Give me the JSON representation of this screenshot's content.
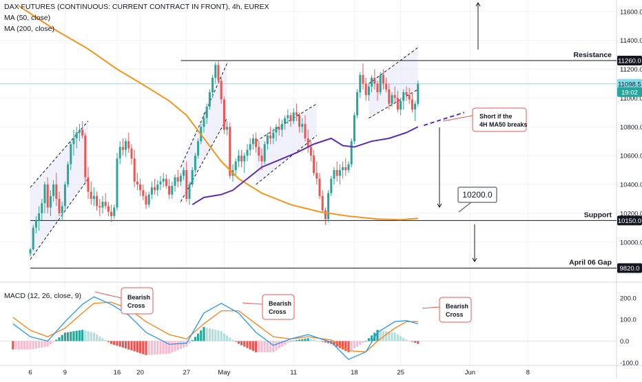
{
  "header": {
    "title": "DAX FUTURES (CONTINUOUS: CURRENT CONTRACT IN FRONT), 4h, EUREX",
    "indicators": [
      "MA (50, close)",
      "MA (200, close)"
    ]
  },
  "colors": {
    "bull": "#26a69a",
    "bear": "#ef5350",
    "ma50": "#5b2bb5",
    "ma200": "#f7931a",
    "channel": "#e6e6fa",
    "macd_line": "#2196f3",
    "signal_line": "#ff7f0e",
    "hist_up": "#26a69a",
    "hist_up_light": "#b2dfdb",
    "hist_down": "#ef5350",
    "hist_down_light": "#f8bbd0",
    "note_border": "#ef5350",
    "cyan_line": "#80deea"
  },
  "chart_data": [
    {
      "type": "candlestick",
      "title": "DAX FUTURES (CONTINUOUS: CURRENT CONTRACT IN FRONT), 4h, EUREX",
      "y_axis": {
        "ticks": [
          10000,
          10200,
          10400,
          10600,
          10800,
          11000,
          11200,
          11400,
          11600
        ],
        "range": [
          9760,
          11680
        ]
      },
      "x_axis": {
        "ticks": [
          "6",
          "9",
          "16",
          "20",
          "27",
          "May",
          "11",
          "18",
          "25",
          "Jun",
          "8"
        ],
        "tick_index": [
          0,
          12,
          30,
          38,
          54,
          67,
          91,
          112,
          128,
          152,
          172
        ]
      },
      "candles": [
        [
          9920,
          9960,
          9900,
          9950
        ],
        [
          9950,
          10120,
          9940,
          10100
        ],
        [
          10100,
          10180,
          10060,
          10150
        ],
        [
          10150,
          10250,
          10080,
          10200
        ],
        [
          10200,
          10300,
          10150,
          10270
        ],
        [
          10270,
          10420,
          10200,
          10400
        ],
        [
          10400,
          10450,
          10200,
          10240
        ],
        [
          10240,
          10360,
          10180,
          10320
        ],
        [
          10320,
          10430,
          10280,
          10400
        ],
        [
          10400,
          10480,
          10250,
          10300
        ],
        [
          10300,
          10350,
          10180,
          10200
        ],
        [
          10200,
          10280,
          10150,
          10250
        ],
        [
          10250,
          10420,
          10220,
          10400
        ],
        [
          10400,
          10560,
          10380,
          10540
        ],
        [
          10540,
          10700,
          10500,
          10680
        ],
        [
          10680,
          10780,
          10600,
          10720
        ],
        [
          10720,
          10800,
          10650,
          10760
        ],
        [
          10760,
          10820,
          10700,
          10780
        ],
        [
          10780,
          10840,
          10720,
          10740
        ],
        [
          10740,
          10760,
          10400,
          10450
        ],
        [
          10450,
          10520,
          10300,
          10350
        ],
        [
          10350,
          10420,
          10260,
          10300
        ],
        [
          10300,
          10380,
          10250,
          10320
        ],
        [
          10320,
          10350,
          10220,
          10250
        ],
        [
          10250,
          10300,
          10180,
          10240
        ],
        [
          10240,
          10320,
          10200,
          10280
        ],
        [
          10280,
          10340,
          10230,
          10250
        ],
        [
          10250,
          10280,
          10180,
          10210
        ],
        [
          10210,
          10260,
          10140,
          10180
        ],
        [
          10180,
          10260,
          10160,
          10240
        ],
        [
          10240,
          10620,
          10220,
          10580
        ],
        [
          10580,
          10700,
          10540,
          10660
        ],
        [
          10660,
          10720,
          10600,
          10640
        ],
        [
          10640,
          10720,
          10590,
          10700
        ],
        [
          10700,
          10760,
          10620,
          10650
        ],
        [
          10650,
          10680,
          10540,
          10580
        ],
        [
          10580,
          10640,
          10380,
          10420
        ],
        [
          10420,
          10480,
          10360,
          10400
        ],
        [
          10400,
          10440,
          10320,
          10360
        ],
        [
          10360,
          10400,
          10290,
          10320
        ],
        [
          10320,
          10350,
          10230,
          10260
        ],
        [
          10260,
          10350,
          10240,
          10330
        ],
        [
          10330,
          10420,
          10300,
          10380
        ],
        [
          10380,
          10440,
          10330,
          10360
        ],
        [
          10360,
          10430,
          10320,
          10400
        ],
        [
          10400,
          10460,
          10360,
          10420
        ],
        [
          10420,
          10480,
          10380,
          10440
        ],
        [
          10440,
          10470,
          10370,
          10390
        ],
        [
          10390,
          10440,
          10300,
          10330
        ],
        [
          10330,
          10420,
          10300,
          10390
        ],
        [
          10390,
          10470,
          10350,
          10450
        ],
        [
          10450,
          10500,
          10380,
          10420
        ],
        [
          10420,
          10480,
          10390,
          10460
        ],
        [
          10460,
          10520,
          10430,
          10500
        ],
        [
          10500,
          10560,
          10280,
          10300
        ],
        [
          10300,
          10420,
          10260,
          10400
        ],
        [
          10400,
          10520,
          10380,
          10500
        ],
        [
          10500,
          10620,
          10480,
          10600
        ],
        [
          10600,
          10720,
          10580,
          10700
        ],
        [
          10700,
          10820,
          10680,
          10800
        ],
        [
          10800,
          10900,
          10760,
          10860
        ],
        [
          10860,
          10960,
          10820,
          10940
        ],
        [
          10940,
          11060,
          10920,
          11040
        ],
        [
          11040,
          11160,
          11000,
          11140
        ],
        [
          11140,
          11250,
          11100,
          11230
        ],
        [
          11230,
          11260,
          11100,
          11120
        ],
        [
          11120,
          11140,
          10960,
          10990
        ],
        [
          10990,
          11010,
          10750,
          10780
        ],
        [
          10780,
          10840,
          10740,
          10800
        ],
        [
          10800,
          10830,
          10440,
          10460
        ],
        [
          10460,
          10540,
          10420,
          10500
        ],
        [
          10500,
          10580,
          10460,
          10560
        ],
        [
          10560,
          10640,
          10520,
          10600
        ],
        [
          10600,
          10640,
          10520,
          10560
        ],
        [
          10560,
          10620,
          10480,
          10600
        ],
        [
          10600,
          10680,
          10560,
          10640
        ],
        [
          10640,
          10720,
          10600,
          10680
        ],
        [
          10680,
          10750,
          10640,
          10720
        ],
        [
          10720,
          10760,
          10620,
          10660
        ],
        [
          10660,
          10700,
          10560,
          10600
        ],
        [
          10600,
          10650,
          10500,
          10560
        ],
        [
          10560,
          10700,
          10540,
          10680
        ],
        [
          10680,
          10760,
          10640,
          10740
        ],
        [
          10740,
          10800,
          10680,
          10720
        ],
        [
          10720,
          10790,
          10680,
          10760
        ],
        [
          10760,
          10820,
          10700,
          10800
        ],
        [
          10800,
          10860,
          10740,
          10780
        ],
        [
          10780,
          10850,
          10730,
          10820
        ],
        [
          10820,
          10880,
          10780,
          10860
        ],
        [
          10860,
          10920,
          10820,
          10880
        ],
        [
          10880,
          10900,
          10800,
          10840
        ],
        [
          10840,
          10930,
          10820,
          10900
        ],
        [
          10900,
          10960,
          10840,
          10880
        ],
        [
          10880,
          10900,
          10760,
          10800
        ],
        [
          10800,
          10860,
          10760,
          10820
        ],
        [
          10820,
          10880,
          10700,
          10720
        ],
        [
          10720,
          10780,
          10620,
          10660
        ],
        [
          10660,
          10700,
          10560,
          10600
        ],
        [
          10600,
          10640,
          10460,
          10480
        ],
        [
          10480,
          10560,
          10400,
          10440
        ],
        [
          10440,
          10480,
          10300,
          10320
        ],
        [
          10320,
          10360,
          10200,
          10220
        ],
        [
          10220,
          10240,
          10120,
          10160
        ],
        [
          10160,
          10360,
          10140,
          10340
        ],
        [
          10340,
          10460,
          10320,
          10440
        ],
        [
          10440,
          10520,
          10400,
          10500
        ],
        [
          10500,
          10560,
          10420,
          10460
        ],
        [
          10460,
          10540,
          10400,
          10500
        ],
        [
          10500,
          10560,
          10440,
          10520
        ],
        [
          10520,
          10580,
          10460,
          10500
        ],
        [
          10500,
          10560,
          10480,
          10540
        ],
        [
          10540,
          10720,
          10520,
          10700
        ],
        [
          10700,
          10900,
          10680,
          10880
        ],
        [
          10880,
          11060,
          10860,
          11040
        ],
        [
          11040,
          11180,
          11000,
          11160
        ],
        [
          11160,
          11240,
          11060,
          11100
        ],
        [
          11100,
          11140,
          10980,
          11020
        ],
        [
          11020,
          11100,
          10980,
          11080
        ],
        [
          11080,
          11160,
          11040,
          11140
        ],
        [
          11140,
          11200,
          11060,
          11100
        ],
        [
          11100,
          11120,
          10980,
          11040
        ],
        [
          11040,
          11180,
          11020,
          11160
        ],
        [
          11160,
          11200,
          11060,
          11100
        ],
        [
          11100,
          11140,
          11040,
          11060
        ],
        [
          11060,
          11100,
          10920,
          10960
        ],
        [
          10960,
          11040,
          10940,
          11020
        ],
        [
          11020,
          11080,
          10960,
          11000
        ],
        [
          11000,
          11050,
          10900,
          10920
        ],
        [
          10920,
          11000,
          10880,
          10980
        ],
        [
          10980,
          11060,
          10920,
          11040
        ],
        [
          11040,
          11080,
          10980,
          11020
        ],
        [
          11020,
          11070,
          10960,
          10990
        ],
        [
          10990,
          11040,
          10900,
          10920
        ],
        [
          10920,
          10980,
          10840,
          10960
        ],
        [
          10960,
          11120,
          10940,
          11098.5
        ]
      ],
      "ma50": [
        [
          56,
          10260
        ],
        [
          60,
          10310
        ],
        [
          66,
          10330
        ],
        [
          70,
          10360
        ],
        [
          75,
          10440
        ],
        [
          80,
          10520
        ],
        [
          86,
          10570
        ],
        [
          92,
          10620
        ],
        [
          98,
          10680
        ],
        [
          104,
          10720
        ],
        [
          108,
          10670
        ],
        [
          112,
          10660
        ],
        [
          118,
          10700
        ],
        [
          124,
          10720
        ],
        [
          130,
          10760
        ],
        [
          134,
          10800
        ]
      ],
      "ma200": [
        [
          -4,
          11640
        ],
        [
          8,
          11480
        ],
        [
          20,
          11340
        ],
        [
          30,
          11200
        ],
        [
          40,
          11080
        ],
        [
          48,
          10980
        ],
        [
          54,
          10880
        ],
        [
          60,
          10720
        ],
        [
          66,
          10560
        ],
        [
          72,
          10440
        ],
        [
          80,
          10340
        ],
        [
          90,
          10260
        ],
        [
          100,
          10210
        ],
        [
          110,
          10180
        ],
        [
          120,
          10160
        ],
        [
          128,
          10155
        ],
        [
          134,
          10165
        ]
      ],
      "price_lines": [
        {
          "label": "Resistance",
          "value": 11260
        },
        {
          "label": "Support",
          "value": 10150
        },
        {
          "label": "April 06 Gap",
          "value": 9820
        }
      ],
      "price_labels": [
        {
          "label": "11260.0",
          "value": 11260
        },
        {
          "label": "11098.5",
          "value": 11098.5
        },
        {
          "label": "19:02",
          "value": 11020
        },
        {
          "label": "10150.0",
          "value": 10150
        },
        {
          "label": "9820.0",
          "value": 9820
        }
      ],
      "target_label": "10200.0",
      "annotation": "Short if the 4H MA50 breaks"
    },
    {
      "type": "line",
      "title": "MACD (12, 26, close, 9)",
      "y_axis": {
        "ticks": [
          200,
          100,
          0,
          -100
        ],
        "range": [
          -110,
          260
        ]
      },
      "macd": [
        [
          -6,
          80
        ],
        [
          0,
          20
        ],
        [
          6,
          0
        ],
        [
          12,
          90
        ],
        [
          18,
          170
        ],
        [
          22,
          205
        ],
        [
          28,
          170
        ],
        [
          34,
          120
        ],
        [
          40,
          40
        ],
        [
          48,
          -15
        ],
        [
          54,
          -10
        ],
        [
          60,
          130
        ],
        [
          66,
          175
        ],
        [
          72,
          130
        ],
        [
          78,
          40
        ],
        [
          84,
          -20
        ],
        [
          90,
          10
        ],
        [
          96,
          30
        ],
        [
          104,
          -5
        ],
        [
          110,
          -85
        ],
        [
          116,
          -50
        ],
        [
          120,
          40
        ],
        [
          126,
          90
        ],
        [
          130,
          95
        ],
        [
          134,
          80
        ]
      ],
      "signal": [
        [
          -6,
          110
        ],
        [
          0,
          50
        ],
        [
          6,
          20
        ],
        [
          12,
          60
        ],
        [
          18,
          130
        ],
        [
          22,
          175
        ],
        [
          28,
          180
        ],
        [
          34,
          150
        ],
        [
          40,
          90
        ],
        [
          48,
          30
        ],
        [
          54,
          10
        ],
        [
          60,
          80
        ],
        [
          66,
          140
        ],
        [
          72,
          140
        ],
        [
          78,
          80
        ],
        [
          84,
          20
        ],
        [
          90,
          10
        ],
        [
          96,
          20
        ],
        [
          104,
          5
        ],
        [
          110,
          -45
        ],
        [
          116,
          -50
        ],
        [
          120,
          0
        ],
        [
          126,
          60
        ],
        [
          130,
          90
        ],
        [
          134,
          90
        ]
      ],
      "annotations": [
        "Bearish Cross",
        "Bearish Cross",
        "Bearish Cross"
      ]
    }
  ]
}
